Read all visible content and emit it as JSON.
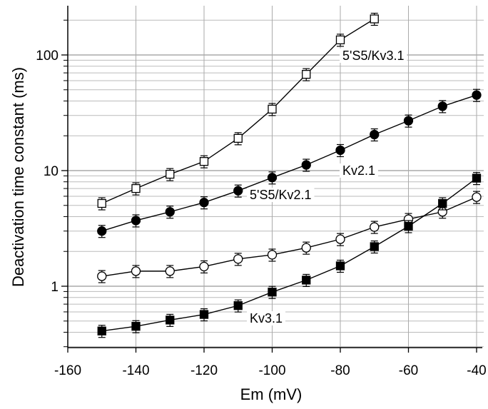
{
  "chart_data": {
    "type": "line",
    "title": "",
    "xlabel": "Em (mV)",
    "ylabel": "Deactivation time constant (ms)",
    "xlim": [
      -160,
      -40
    ],
    "ylim": [
      0.3,
      270
    ],
    "yscale": "log",
    "grid": true,
    "xticks": [
      -160,
      -140,
      -120,
      -100,
      -80,
      -60,
      -40
    ],
    "yticks": [
      1,
      10,
      100
    ],
    "series": [
      {
        "name": "5'S5/Kv3.1",
        "marker": "open-square",
        "x": [
          -150,
          -140,
          -130,
          -120,
          -110,
          -100,
          -90,
          -80,
          -70
        ],
        "y": [
          5.2,
          7.0,
          9.3,
          12,
          19,
          34,
          68,
          135,
          205
        ]
      },
      {
        "name": "Kv2.1",
        "marker": "filled-circle",
        "x": [
          -150,
          -140,
          -130,
          -120,
          -110,
          -100,
          -90,
          -80,
          -70,
          -60,
          -50,
          -40
        ],
        "y": [
          3.0,
          3.7,
          4.4,
          5.3,
          6.7,
          8.7,
          11.2,
          15,
          20.5,
          27,
          36,
          45
        ]
      },
      {
        "name": "5'S5/Kv2.1",
        "marker": "open-circle",
        "x": [
          -150,
          -140,
          -130,
          -120,
          -110,
          -100,
          -90,
          -80,
          -70,
          -60,
          -50,
          -40
        ],
        "y": [
          1.22,
          1.35,
          1.35,
          1.48,
          1.72,
          1.87,
          2.15,
          2.55,
          3.25,
          3.8,
          4.4,
          5.9
        ]
      },
      {
        "name": "Kv3.1",
        "marker": "filled-square",
        "x": [
          -150,
          -140,
          -130,
          -120,
          -110,
          -100,
          -90,
          -80,
          -70,
          -60,
          -50,
          -40
        ],
        "y": [
          0.41,
          0.45,
          0.51,
          0.57,
          0.68,
          0.89,
          1.13,
          1.5,
          2.2,
          3.3,
          5.2,
          8.6
        ]
      }
    ],
    "error_fraction": 0.12
  }
}
